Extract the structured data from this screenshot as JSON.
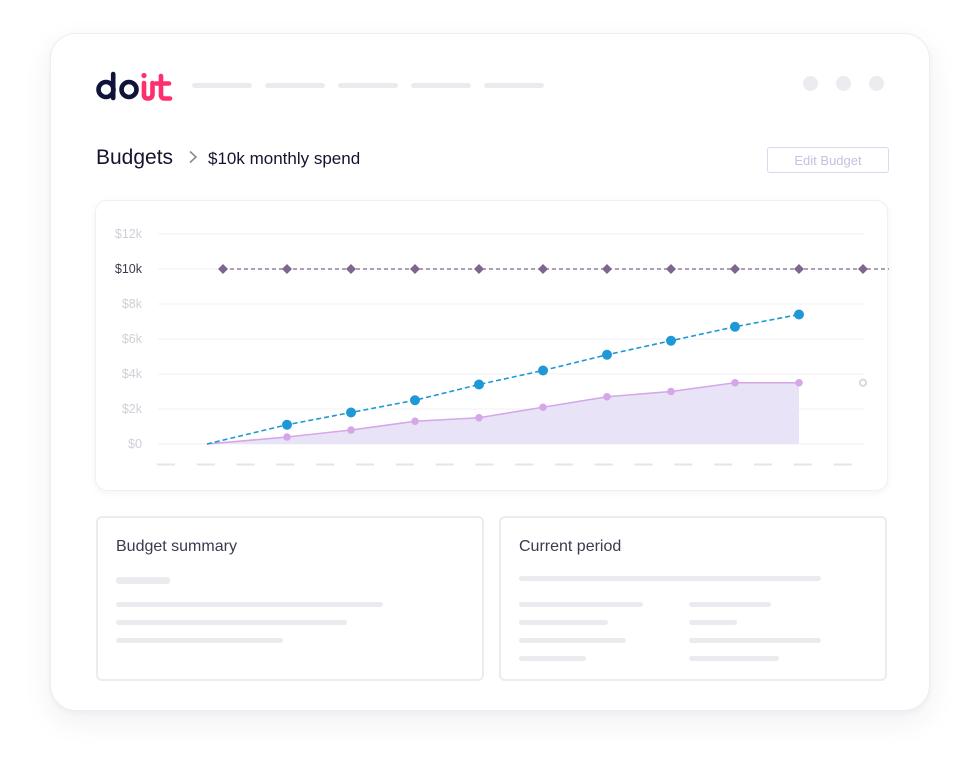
{
  "logo": {
    "text": "doit",
    "dark_color": "#0f1438",
    "accent_color": "#ff2f6d"
  },
  "header": {
    "window_controls": [
      "dot",
      "dot",
      "dot"
    ]
  },
  "breadcrumb": {
    "title": "Budgets",
    "separator_icon": "chevron-right-icon",
    "current": "$10k monthly spend"
  },
  "actions": {
    "edit_budget_label": "Edit Budget"
  },
  "chart_data": {
    "type": "line",
    "title": "",
    "xlabel": "",
    "ylabel": "",
    "y_ticks": [
      "$12k",
      "$10k",
      "$8k",
      "$6k",
      "$4k",
      "$2k",
      "$0"
    ],
    "y_tick_values": [
      12,
      10,
      8,
      6,
      4,
      2,
      0
    ],
    "ylim": [
      0,
      12
    ],
    "x_count": 13,
    "grid": true,
    "series": [
      {
        "key": "budget",
        "style": "dashed-diamond",
        "color": "#7f668f",
        "x": [
          0,
          1,
          2,
          3,
          4,
          5,
          6,
          7,
          8,
          9,
          10,
          11
        ],
        "values": [
          10,
          10,
          10,
          10,
          10,
          10,
          10,
          10,
          10,
          10,
          10,
          10
        ]
      },
      {
        "key": "forecast",
        "style": "dashed-dot",
        "color": "#1f98d6",
        "x": [
          -0.25,
          1,
          2,
          3,
          4,
          5,
          6,
          7,
          8,
          9
        ],
        "values": [
          0,
          1.1,
          1.8,
          2.5,
          3.4,
          4.2,
          5.1,
          5.9,
          6.7,
          7.4
        ]
      },
      {
        "key": "actual",
        "style": "area",
        "color": "#d5a7e8",
        "fill": "#e8e3f7",
        "x": [
          -0.25,
          1,
          2,
          3,
          4,
          5,
          6,
          7,
          8,
          9
        ],
        "values": [
          0,
          0.4,
          0.8,
          1.3,
          1.5,
          2.1,
          2.7,
          3.0,
          3.5,
          3.5
        ]
      },
      {
        "key": "future",
        "style": "hollow-dot",
        "color": "#d4d4dc",
        "x": [
          10,
          11
        ],
        "values": [
          3.5,
          3.5
        ]
      }
    ]
  },
  "summary": {
    "title": "Budget summary"
  },
  "current_period": {
    "title": "Current period"
  }
}
